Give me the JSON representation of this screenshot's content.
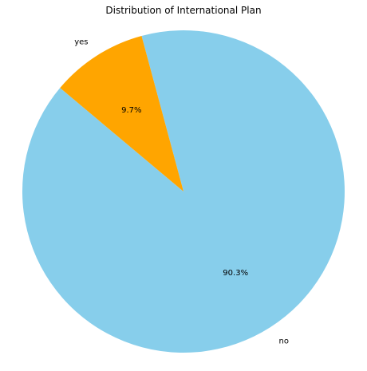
{
  "chart_data": {
    "type": "pie",
    "title": "Distribution of International Plan",
    "categories": [
      "no",
      "yes"
    ],
    "values": [
      90.3,
      9.7
    ],
    "value_labels": [
      "90.3%",
      "9.7%"
    ],
    "colors": [
      "#87ceeb",
      "#ffa500"
    ],
    "start_angle_deg": 140,
    "legend": "none"
  }
}
